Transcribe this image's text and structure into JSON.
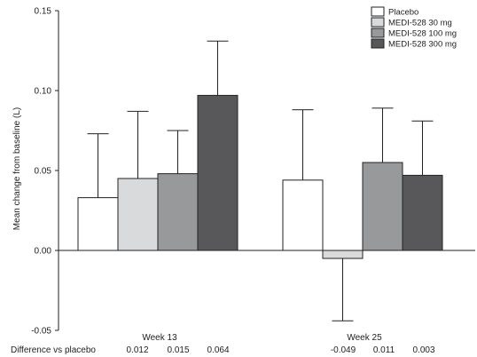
{
  "chart_data": {
    "type": "bar",
    "ylabel": "Mean change from baseline (L)",
    "ylim": [
      -0.05,
      0.15
    ],
    "yticks": [
      "0.15",
      "0.10",
      "0.05",
      "0.00",
      "-0.05"
    ],
    "ytick_values": [
      0.15,
      0.1,
      0.05,
      0.0,
      -0.05
    ],
    "categories": [
      "Week 13",
      "Week 25"
    ],
    "series": [
      {
        "name": "Placebo",
        "color": "#ffffff",
        "values": [
          0.033,
          0.044
        ],
        "error_upper": [
          0.073,
          0.088
        ],
        "error_lower": [
          null,
          null
        ]
      },
      {
        "name": "MEDI-528 30 mg",
        "color": "#d9dadb",
        "values": [
          0.045,
          -0.005
        ],
        "error_upper": [
          0.087,
          null
        ],
        "error_lower": [
          null,
          -0.044
        ]
      },
      {
        "name": "MEDI-528 100 mg",
        "color": "#98999b",
        "values": [
          0.048,
          0.055
        ],
        "error_upper": [
          0.075,
          0.089
        ],
        "error_lower": [
          null,
          null
        ]
      },
      {
        "name": "MEDI-528 300 mg",
        "color": "#58585a",
        "values": [
          0.097,
          0.047
        ],
        "error_upper": [
          0.131,
          0.081
        ],
        "error_lower": [
          null,
          null
        ]
      }
    ],
    "legend_position": "top-right",
    "difference_row": {
      "label": "Difference vs placebo",
      "values": [
        [
          "",
          "0.012",
          "0.015",
          "0.064"
        ],
        [
          "",
          "-0.049",
          "0.011",
          "0.003"
        ]
      ]
    }
  }
}
